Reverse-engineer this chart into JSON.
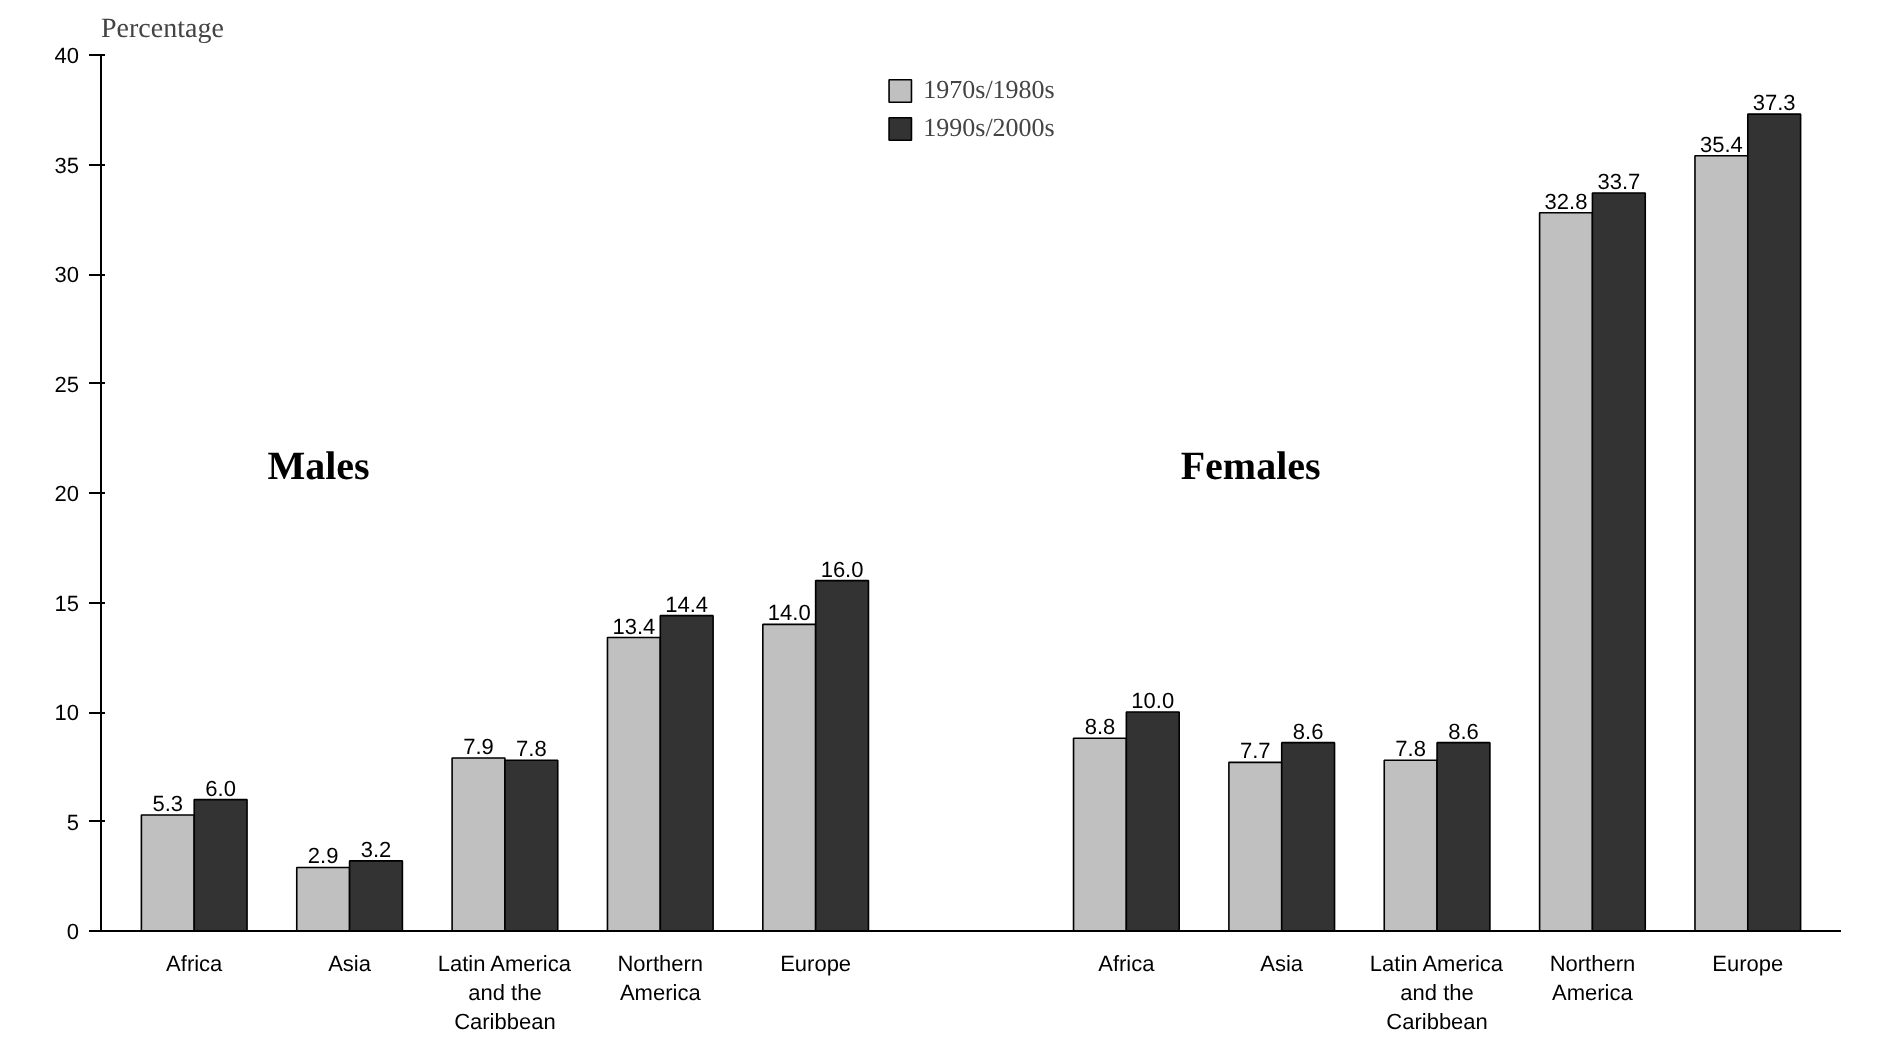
{
  "chart_data": {
    "type": "bar",
    "ylabel": "Percentage",
    "categories": [
      "Africa",
      "Asia",
      "Latin America and the Caribbean",
      "Northern America",
      "Europe",
      null,
      "Africa",
      "Asia",
      "Latin America and the Caribbean",
      "Northern America",
      "Europe"
    ],
    "series": [
      {
        "name": "1970s/1980s",
        "color": "#c0c0c0",
        "values": [
          5.3,
          2.9,
          7.9,
          13.4,
          14.0,
          null,
          8.8,
          7.7,
          7.8,
          32.8,
          35.4
        ],
        "value_labels": [
          "5.3",
          "2.9",
          "7.9",
          "13.4",
          "14.0",
          null,
          "8.8",
          "7.7",
          "7.8",
          "32.8",
          "35.4"
        ]
      },
      {
        "name": "1990s/2000s",
        "color": "#333333",
        "values": [
          6.0,
          3.2,
          7.8,
          14.4,
          16.0,
          null,
          10.0,
          8.6,
          8.6,
          33.7,
          37.3
        ],
        "value_labels": [
          "6.0",
          "3.2",
          "7.8",
          "14.4",
          "16.0",
          null,
          "10.0",
          "8.6",
          "8.6",
          "33.7",
          "37.3"
        ]
      }
    ],
    "annotations": [
      "Males",
      "Females"
    ],
    "ylim": [
      0,
      40
    ],
    "yticks": [
      0,
      5,
      10,
      15,
      20,
      25,
      30,
      35,
      40
    ],
    "grid": false,
    "legend": "top"
  }
}
